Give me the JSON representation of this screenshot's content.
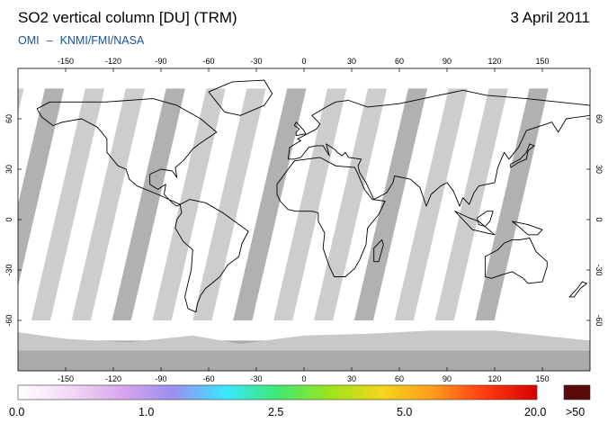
{
  "header": {
    "title": "SO2 vertical column [DU] (TRM)",
    "date": "3 April 2011",
    "credit_left": "OMI",
    "credit_sep": "–",
    "credit_right": "KNMI/FMI/NASA"
  },
  "map": {
    "lon_ticks": [
      "-150",
      "-120",
      "-90",
      "-60",
      "-30",
      "0",
      "30",
      "60",
      "90",
      "120",
      "150"
    ],
    "lat_ticks": [
      "60",
      "30",
      "0",
      "-30",
      "-60"
    ],
    "background_color": "#ffffff",
    "swath_color": "#c8c8c8",
    "gap_color": "#a8a8a8",
    "coastline_color": "#000000"
  },
  "colorbar": {
    "labels": [
      "0.0",
      "1.0",
      "2.5",
      "5.0",
      "20.0"
    ],
    "overflow_label": ">50",
    "colors": [
      "#ffffff",
      "#f2d9f5",
      "#d9a6ee",
      "#9b8ef0",
      "#38e8ff",
      "#3fe870",
      "#9ce41c",
      "#f2d71a",
      "#ff9a1c",
      "#ff3a14",
      "#d40000"
    ],
    "overflow_color": "#5a0808"
  }
}
